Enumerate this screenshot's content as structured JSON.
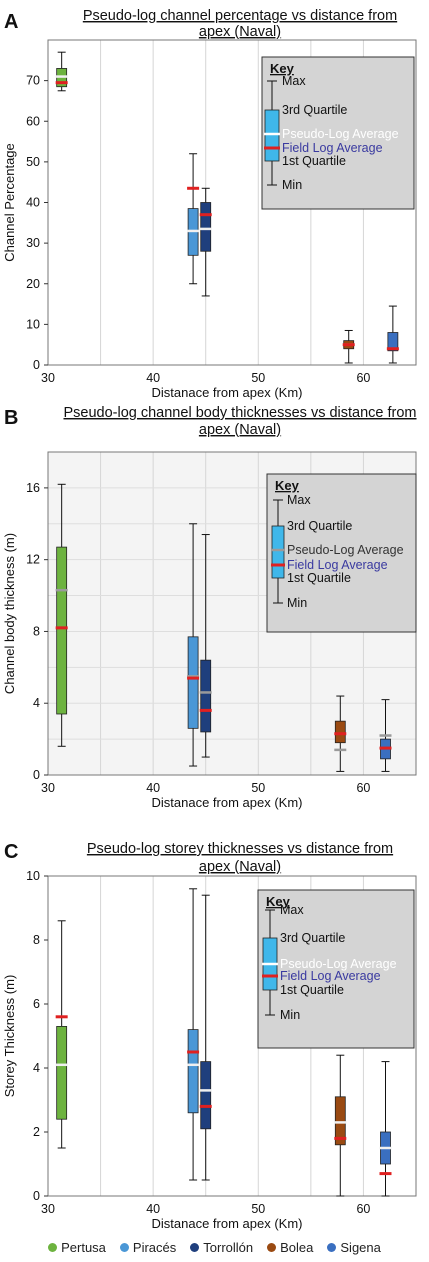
{
  "colors": {
    "pertusa": "#6db33f",
    "piraces": "#4a97d6",
    "torrollon": "#1f3f7d",
    "bolea": "#9a4a12",
    "sigena": "#3a6fc0",
    "key_box": "#d4d4d4",
    "key_swatch": "#3fb7ea",
    "field_log": "#e02020",
    "pseudo_log_label": "#ffffff",
    "field_log_label": "#3a3aa0"
  },
  "legend": [
    {
      "label": "Pertusa",
      "color": "#6db33f"
    },
    {
      "label": "Piracés",
      "color": "#4a97d6"
    },
    {
      "label": "Torrollón",
      "color": "#1f3f7d"
    },
    {
      "label": "Bolea",
      "color": "#9a4a12"
    },
    {
      "label": "Sigena",
      "color": "#3a6fc0"
    }
  ],
  "chart_data": [
    {
      "panel": "A",
      "type": "boxplot",
      "title": "Pseudo-log channel percentage vs distance from apex (Naval)",
      "title_lines": [
        "Pseudo-log channel percentage vs distance from",
        "apex (Naval)"
      ],
      "xlabel": "Distanace from apex (Km)",
      "ylabel": "Channel Percentage",
      "xlim": [
        30,
        65
      ],
      "ylim": [
        0,
        80
      ],
      "xticks": [
        30,
        40,
        50,
        60
      ],
      "yticks": [
        0,
        10,
        20,
        30,
        40,
        50,
        60,
        70
      ],
      "grid": "vertical",
      "key": {
        "title": "Key",
        "max": "Max",
        "q3": "3rd Quartile",
        "pseudo_avg": "Pseudo-Log Average",
        "field_avg": "Field Log Average",
        "q1": "1st Quartile",
        "min": "Min",
        "pseudo_color": "#ffffff",
        "pseudo_label_color": "#ffffff",
        "placement": "top-right"
      },
      "boxes": [
        {
          "name": "Pertusa",
          "x": 31.3,
          "min": 67.5,
          "q1": 68.5,
          "q3": 73,
          "max": 77,
          "pseudo_avg": 71,
          "field_avg": 69.5,
          "color": "#6db33f",
          "pseudo_color": "#f0f0f0"
        },
        {
          "name": "Piracés",
          "x": 43.8,
          "min": 20,
          "q1": 27,
          "q3": 38.5,
          "max": 52,
          "pseudo_avg": 33,
          "field_avg": 43.5,
          "color": "#4a97d6",
          "pseudo_color": "#f0f0f0"
        },
        {
          "name": "Torrollón",
          "x": 45.0,
          "min": 17,
          "q1": 28,
          "q3": 40,
          "max": 43.5,
          "pseudo_avg": 33.5,
          "field_avg": 37,
          "color": "#1f3f7d",
          "pseudo_color": "#f0f0f0"
        },
        {
          "name": "Bolea",
          "x": 58.6,
          "min": 0.5,
          "q1": 4,
          "q3": 6,
          "max": 8.5,
          "pseudo_avg": 5,
          "field_avg": 5,
          "color": "#9a4a12",
          "pseudo_color": "#f0f0f0"
        },
        {
          "name": "Sigena",
          "x": 62.8,
          "min": 0.5,
          "q1": 3.5,
          "q3": 8,
          "max": 14.5,
          "pseudo_avg": 4,
          "field_avg": 4,
          "color": "#3a6fc0",
          "pseudo_color": "#f0f0f0"
        }
      ]
    },
    {
      "panel": "B",
      "type": "boxplot",
      "title": "Pseudo-log channel body thicknesses vs distance from apex (Naval)",
      "title_lines": [
        "Pseudo-log channel body thicknesses vs distance from",
        "apex (Naval)"
      ],
      "xlabel": "Distanace from apex (Km)",
      "ylabel": "Channel body  thickness (m)",
      "xlim": [
        30,
        65
      ],
      "ylim": [
        0,
        18
      ],
      "xticks": [
        30,
        40,
        50,
        60
      ],
      "yticks": [
        0,
        4,
        8,
        12,
        16
      ],
      "grid": "both",
      "key": {
        "title": "Key",
        "max": "Max",
        "q3": "3rd Quartile",
        "pseudo_avg": "Pseudo-Log Average",
        "field_avg": "Field Log Average",
        "q1": "1st Quartile",
        "min": "Min",
        "pseudo_color": "#9a9a9a",
        "pseudo_label_color": "#333333",
        "placement": "top-right"
      },
      "boxes": [
        {
          "name": "Pertusa",
          "x": 31.3,
          "min": 1.6,
          "q1": 3.4,
          "q3": 12.7,
          "max": 16.2,
          "pseudo_avg": 10.3,
          "field_avg": 8.2,
          "color": "#6db33f",
          "pseudo_color": "#9a9a9a"
        },
        {
          "name": "Piracés",
          "x": 43.8,
          "min": 0.5,
          "q1": 2.6,
          "q3": 7.7,
          "max": 14.0,
          "pseudo_avg": 5.5,
          "field_avg": 5.4,
          "color": "#4a97d6",
          "pseudo_color": "#9a9a9a"
        },
        {
          "name": "Torrollón",
          "x": 45.0,
          "min": 1.0,
          "q1": 2.4,
          "q3": 6.4,
          "max": 13.4,
          "pseudo_avg": 4.6,
          "field_avg": 3.6,
          "color": "#1f3f7d",
          "pseudo_color": "#9a9a9a"
        },
        {
          "name": "Bolea",
          "x": 57.8,
          "min": 0.2,
          "q1": 1.8,
          "q3": 3.0,
          "max": 4.4,
          "pseudo_avg": 1.4,
          "field_avg": 2.3,
          "color": "#9a4a12",
          "pseudo_color": "#9a9a9a"
        },
        {
          "name": "Sigena",
          "x": 62.1,
          "min": 0.2,
          "q1": 0.9,
          "q3": 2.0,
          "max": 4.2,
          "pseudo_avg": 2.2,
          "field_avg": 1.5,
          "color": "#3a6fc0",
          "pseudo_color": "#9a9a9a"
        }
      ]
    },
    {
      "panel": "C",
      "type": "boxplot",
      "title": "Pseudo-log storey thicknesses vs distance from apex (Naval)",
      "title_lines": [
        "Pseudo-log storey thicknesses vs distance from",
        "apex (Naval)"
      ],
      "xlabel": "Distanace from apex (Km)",
      "ylabel": "Storey Thickness (m)",
      "xlim": [
        30,
        65
      ],
      "ylim": [
        0,
        10
      ],
      "xticks": [
        30,
        40,
        50,
        60
      ],
      "yticks": [
        0,
        2,
        4,
        6,
        8,
        10
      ],
      "grid": "vertical",
      "key": {
        "title": "Key",
        "max": "Max",
        "q3": "3rd Quartile",
        "pseudo_avg": "Pseudo-Log Average",
        "field_avg": "Field Log Average",
        "q1": "1st Quartile",
        "min": "Min",
        "pseudo_color": "#ffffff",
        "pseudo_label_color": "#ffffff",
        "placement": "top-right"
      },
      "boxes": [
        {
          "name": "Pertusa",
          "x": 31.3,
          "min": 1.5,
          "q1": 2.4,
          "q3": 5.3,
          "max": 8.6,
          "pseudo_avg": 4.1,
          "field_avg": 5.6,
          "color": "#6db33f",
          "pseudo_color": "#f0f0f0"
        },
        {
          "name": "Piracés",
          "x": 43.8,
          "min": 0.5,
          "q1": 2.6,
          "q3": 5.2,
          "max": 9.6,
          "pseudo_avg": 4.1,
          "field_avg": 4.5,
          "color": "#4a97d6",
          "pseudo_color": "#f0f0f0"
        },
        {
          "name": "Torrollón",
          "x": 45.0,
          "min": 0.5,
          "q1": 2.1,
          "q3": 4.2,
          "max": 9.4,
          "pseudo_avg": 3.3,
          "field_avg": 2.8,
          "color": "#1f3f7d",
          "pseudo_color": "#f0f0f0"
        },
        {
          "name": "Bolea",
          "x": 57.8,
          "min": 0,
          "q1": 1.6,
          "q3": 3.1,
          "max": 4.4,
          "pseudo_avg": 2.3,
          "field_avg": 1.8,
          "color": "#9a4a12",
          "pseudo_color": "#f0f0f0"
        },
        {
          "name": "Sigena",
          "x": 62.1,
          "min": 0,
          "q1": 1.0,
          "q3": 2.0,
          "max": 4.2,
          "pseudo_avg": 1.5,
          "field_avg": 0.7,
          "color": "#3a6fc0",
          "pseudo_color": "#f0f0f0"
        }
      ]
    }
  ]
}
